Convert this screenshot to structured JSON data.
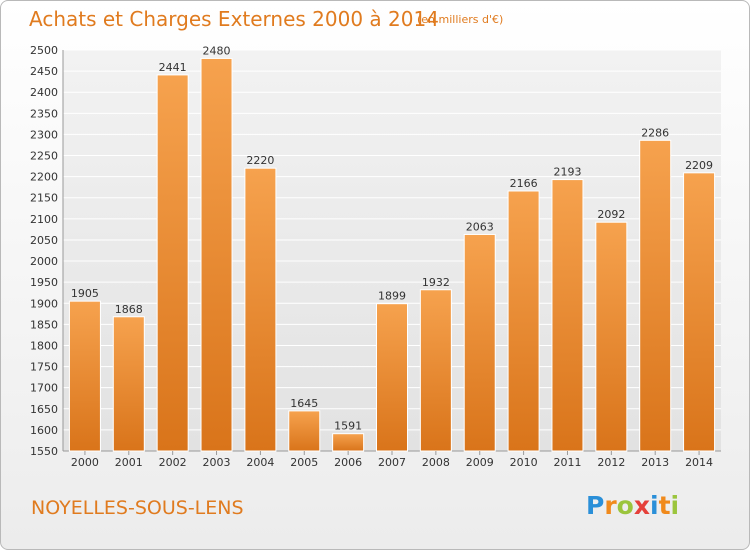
{
  "header": {
    "title": "Achats et Charges Externes 2000 à 2014",
    "subtitle": "(en milliers d'€)"
  },
  "footer": {
    "town": "NOYELLES-SOUS-LENS",
    "logo": [
      "P",
      "r",
      "o",
      "x",
      "i",
      "t",
      "i"
    ],
    "logo_colors": [
      "#2a8fd8",
      "#f08a1c",
      "#9bc53d",
      "#e5403a",
      "#2a8fd8",
      "#f08a1c",
      "#9bc53d"
    ]
  },
  "chart_data": {
    "type": "bar",
    "title": "Achats et Charges Externes 2000 à 2014",
    "subtitle": "(en milliers d'€)",
    "xlabel": "",
    "ylabel": "",
    "categories": [
      "2000",
      "2001",
      "2002",
      "2003",
      "2004",
      "2005",
      "2006",
      "2007",
      "2008",
      "2009",
      "2010",
      "2011",
      "2012",
      "2013",
      "2014"
    ],
    "values": [
      1905,
      1868,
      2441,
      2480,
      2220,
      1645,
      1591,
      1899,
      1932,
      2063,
      2166,
      2193,
      2092,
      2286,
      2209
    ],
    "ylim": [
      1550,
      2500
    ],
    "yticks": [
      1550,
      1600,
      1650,
      1700,
      1750,
      1800,
      1850,
      1900,
      1950,
      2000,
      2050,
      2100,
      2150,
      2200,
      2250,
      2300,
      2350,
      2400,
      2450,
      2500
    ],
    "grid": true,
    "bar_color_top": "#f6a24e",
    "bar_color_bottom": "#d9741a"
  }
}
